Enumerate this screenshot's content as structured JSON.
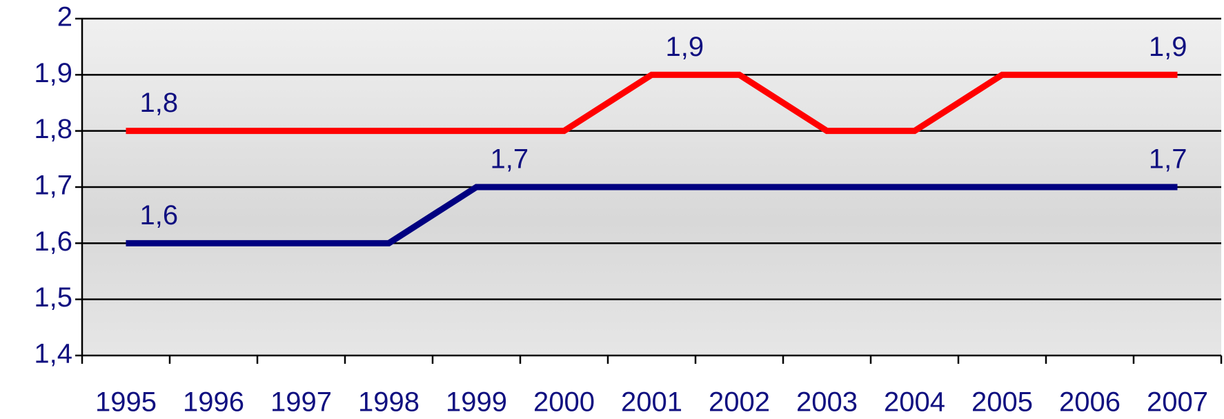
{
  "chart_data": {
    "type": "line",
    "categories": [
      "1995",
      "1996",
      "1997",
      "1998",
      "1999",
      "2000",
      "2001",
      "2002",
      "2003",
      "2004",
      "2005",
      "2006",
      "2007"
    ],
    "series": [
      {
        "color": "#ff0000",
        "values": [
          1.8,
          1.8,
          1.8,
          1.8,
          1.8,
          1.8,
          1.9,
          1.9,
          1.8,
          1.8,
          1.9,
          1.9,
          1.9
        ],
        "value_labels": [
          "1,8",
          null,
          null,
          null,
          null,
          null,
          "1,9",
          null,
          null,
          null,
          null,
          null,
          "1,9"
        ]
      },
      {
        "color": "#000080",
        "values": [
          1.6,
          1.6,
          1.6,
          1.6,
          1.7,
          1.7,
          1.7,
          1.7,
          1.7,
          1.7,
          1.7,
          1.7,
          1.7
        ],
        "value_labels": [
          "1,6",
          null,
          null,
          null,
          "1,7",
          null,
          null,
          null,
          null,
          null,
          null,
          null,
          "1,7"
        ]
      }
    ],
    "ylim": [
      1.4,
      2
    ],
    "yticks": [
      {
        "value": 1.4,
        "label": "1,4"
      },
      {
        "value": 1.5,
        "label": "1,5"
      },
      {
        "value": 1.6,
        "label": "1,6"
      },
      {
        "value": 1.7,
        "label": "1,7"
      },
      {
        "value": 1.8,
        "label": "1,8"
      },
      {
        "value": 1.9,
        "label": "1,9"
      },
      2
    ],
    "grid": true
  }
}
